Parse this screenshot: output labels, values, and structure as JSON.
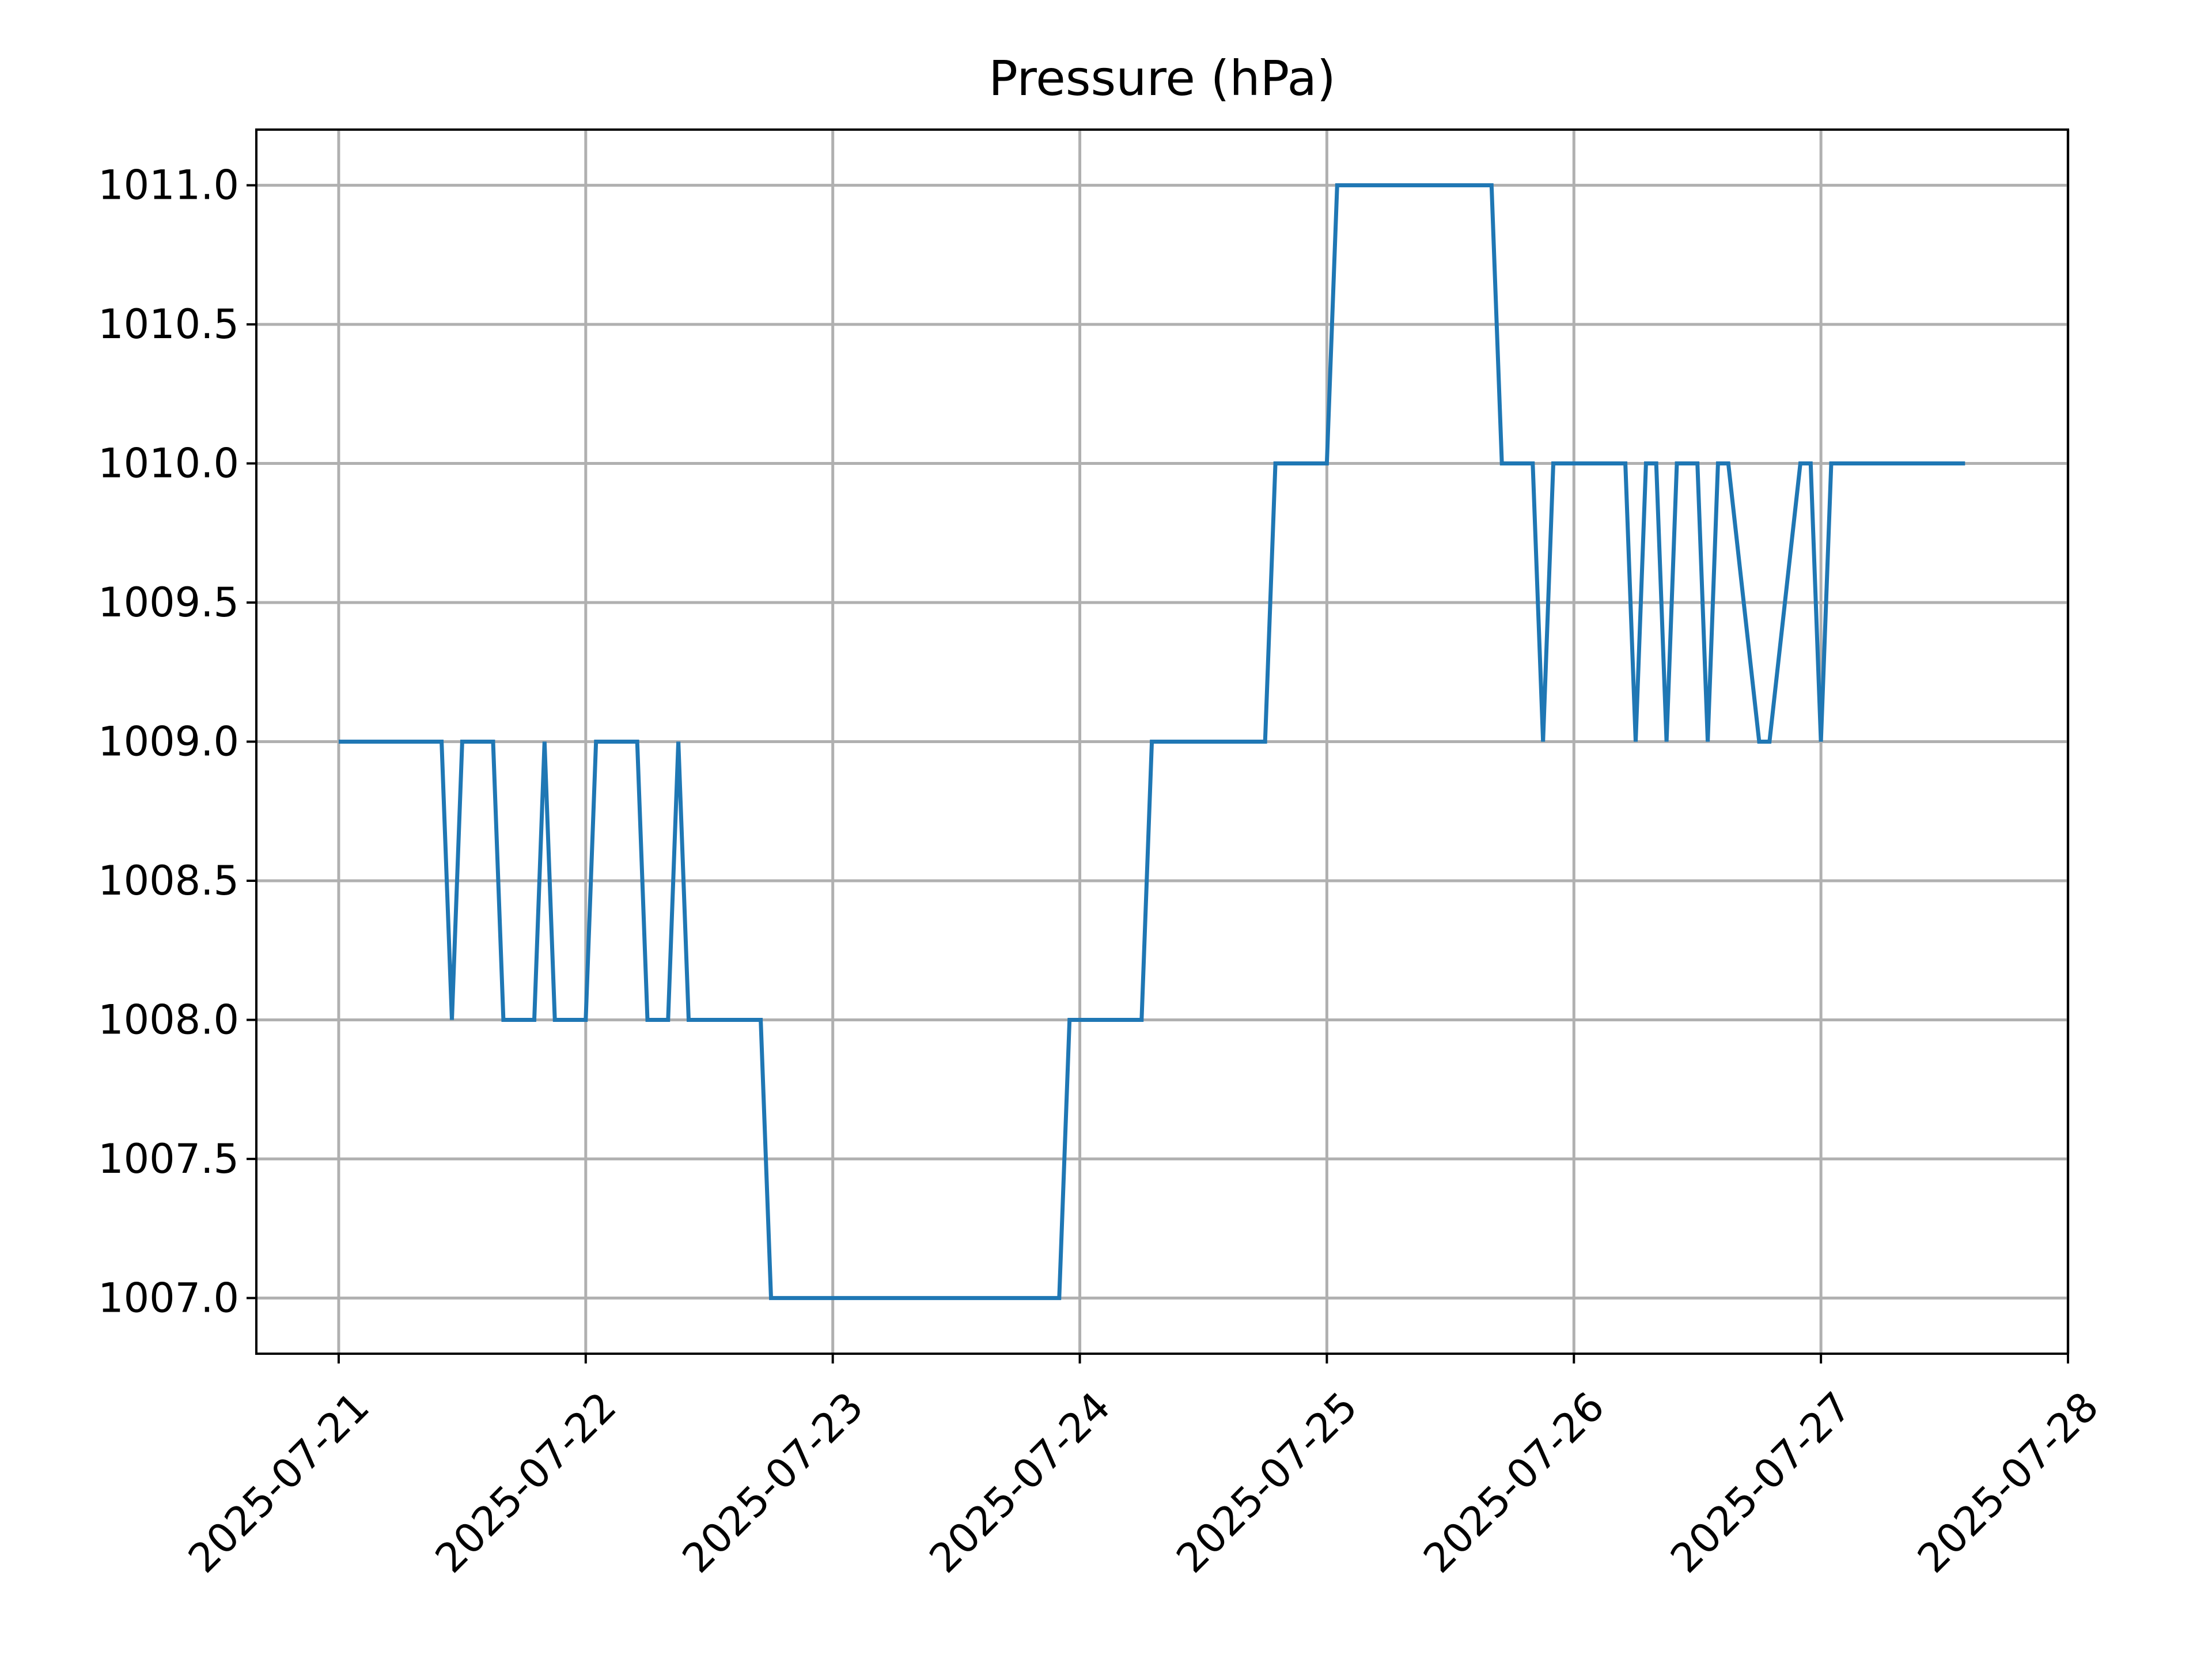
{
  "chart_data": {
    "type": "line",
    "title": "Pressure (hPa)",
    "xlabel": "",
    "ylabel": "",
    "grid": true,
    "xlim": [
      "2025-07-20 16:00",
      "2025-07-28 00:00"
    ],
    "ylim": [
      1006.8,
      1011.2
    ],
    "x_ticks": [
      "2025-07-21",
      "2025-07-22",
      "2025-07-23",
      "2025-07-24",
      "2025-07-25",
      "2025-07-26",
      "2025-07-27",
      "2025-07-28"
    ],
    "y_ticks": [
      "1007.0",
      "1007.5",
      "1008.0",
      "1008.5",
      "1009.0",
      "1009.5",
      "1010.0",
      "1010.5",
      "1011.0"
    ],
    "color": "#1f77b4",
    "series": [
      {
        "x": [
          "2025-07-21 00:00",
          "2025-07-21 10:00",
          "2025-07-21 11:00",
          "2025-07-21 12:00",
          "2025-07-21 15:00",
          "2025-07-21 16:00",
          "2025-07-21 19:00",
          "2025-07-21 20:00",
          "2025-07-21 21:00",
          "2025-07-22 00:00",
          "2025-07-22 01:00",
          "2025-07-22 05:00",
          "2025-07-22 06:00",
          "2025-07-22 08:00",
          "2025-07-22 09:00",
          "2025-07-22 10:00",
          "2025-07-22 17:00",
          "2025-07-22 18:00",
          "2025-07-23 22:00",
          "2025-07-23 23:00",
          "2025-07-24 06:00",
          "2025-07-24 07:00",
          "2025-07-24 18:00",
          "2025-07-24 19:00",
          "2025-07-25 00:00",
          "2025-07-25 01:00",
          "2025-07-25 16:00",
          "2025-07-25 17:00",
          "2025-07-25 20:00",
          "2025-07-25 21:00",
          "2025-07-25 22:00",
          "2025-07-26 05:00",
          "2025-07-26 06:00",
          "2025-07-26 07:00",
          "2025-07-26 08:00",
          "2025-07-26 09:00",
          "2025-07-26 10:00",
          "2025-07-26 12:00",
          "2025-07-26 13:00",
          "2025-07-26 14:00",
          "2025-07-26 15:00",
          "2025-07-26 18:00",
          "2025-07-26 19:00",
          "2025-07-26 22:00",
          "2025-07-26 23:00",
          "2025-07-27 00:00",
          "2025-07-27 01:00",
          "2025-07-27 14:00"
        ],
        "y": [
          1009,
          1009,
          1008,
          1009,
          1009,
          1008,
          1008,
          1009,
          1008,
          1008,
          1009,
          1009,
          1008,
          1008,
          1009,
          1008,
          1008,
          1007,
          1007,
          1008,
          1008,
          1009,
          1009,
          1010,
          1010,
          1011,
          1011,
          1010,
          1010,
          1009,
          1010,
          1010,
          1009,
          1010,
          1010,
          1009,
          1010,
          1010,
          1009,
          1010,
          1010,
          1009,
          1009,
          1010,
          1010,
          1009,
          1010,
          1010
        ]
      }
    ]
  }
}
